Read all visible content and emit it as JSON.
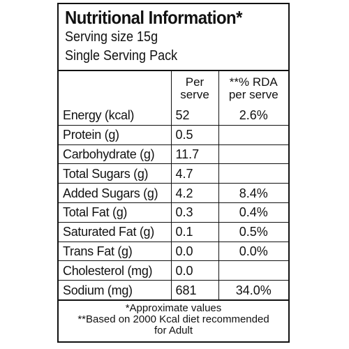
{
  "label": {
    "title": "Nutritional Information*",
    "serving_size": "Serving size 15g",
    "pack": "Single Serving Pack",
    "col_per_serve": [
      "Per",
      "serve"
    ],
    "col_rda": [
      "**% RDA",
      "per serve"
    ],
    "rows": [
      {
        "nutrient": "Energy (kcal)",
        "per_serve": "52",
        "rda": "2.6%"
      },
      {
        "nutrient": "Protein (g)",
        "per_serve": "0.5",
        "rda": ""
      },
      {
        "nutrient": "Carbohydrate (g)",
        "per_serve": "11.7",
        "rda": ""
      },
      {
        "nutrient": "Total Sugars (g)",
        "per_serve": "4.7",
        "rda": ""
      },
      {
        "nutrient": "Added Sugars (g)",
        "per_serve": "4.2",
        "rda": "8.4%"
      },
      {
        "nutrient": "Total Fat (g)",
        "per_serve": "0.3",
        "rda": "0.4%"
      },
      {
        "nutrient": "Saturated Fat (g)",
        "per_serve": "0.1",
        "rda": "0.5%"
      },
      {
        "nutrient": "Trans Fat (g)",
        "per_serve": "0.0",
        "rda": "0.0%"
      },
      {
        "nutrient": "Cholesterol (mg)",
        "per_serve": "0.0",
        "rda": ""
      },
      {
        "nutrient": "Sodium (mg)",
        "per_serve": "681",
        "rda": "34.0%"
      }
    ],
    "footnote_1": "*Approximate values",
    "footnote_2": "**Based on 2000 Kcal diet recommended",
    "footnote_3": "for Adult"
  }
}
